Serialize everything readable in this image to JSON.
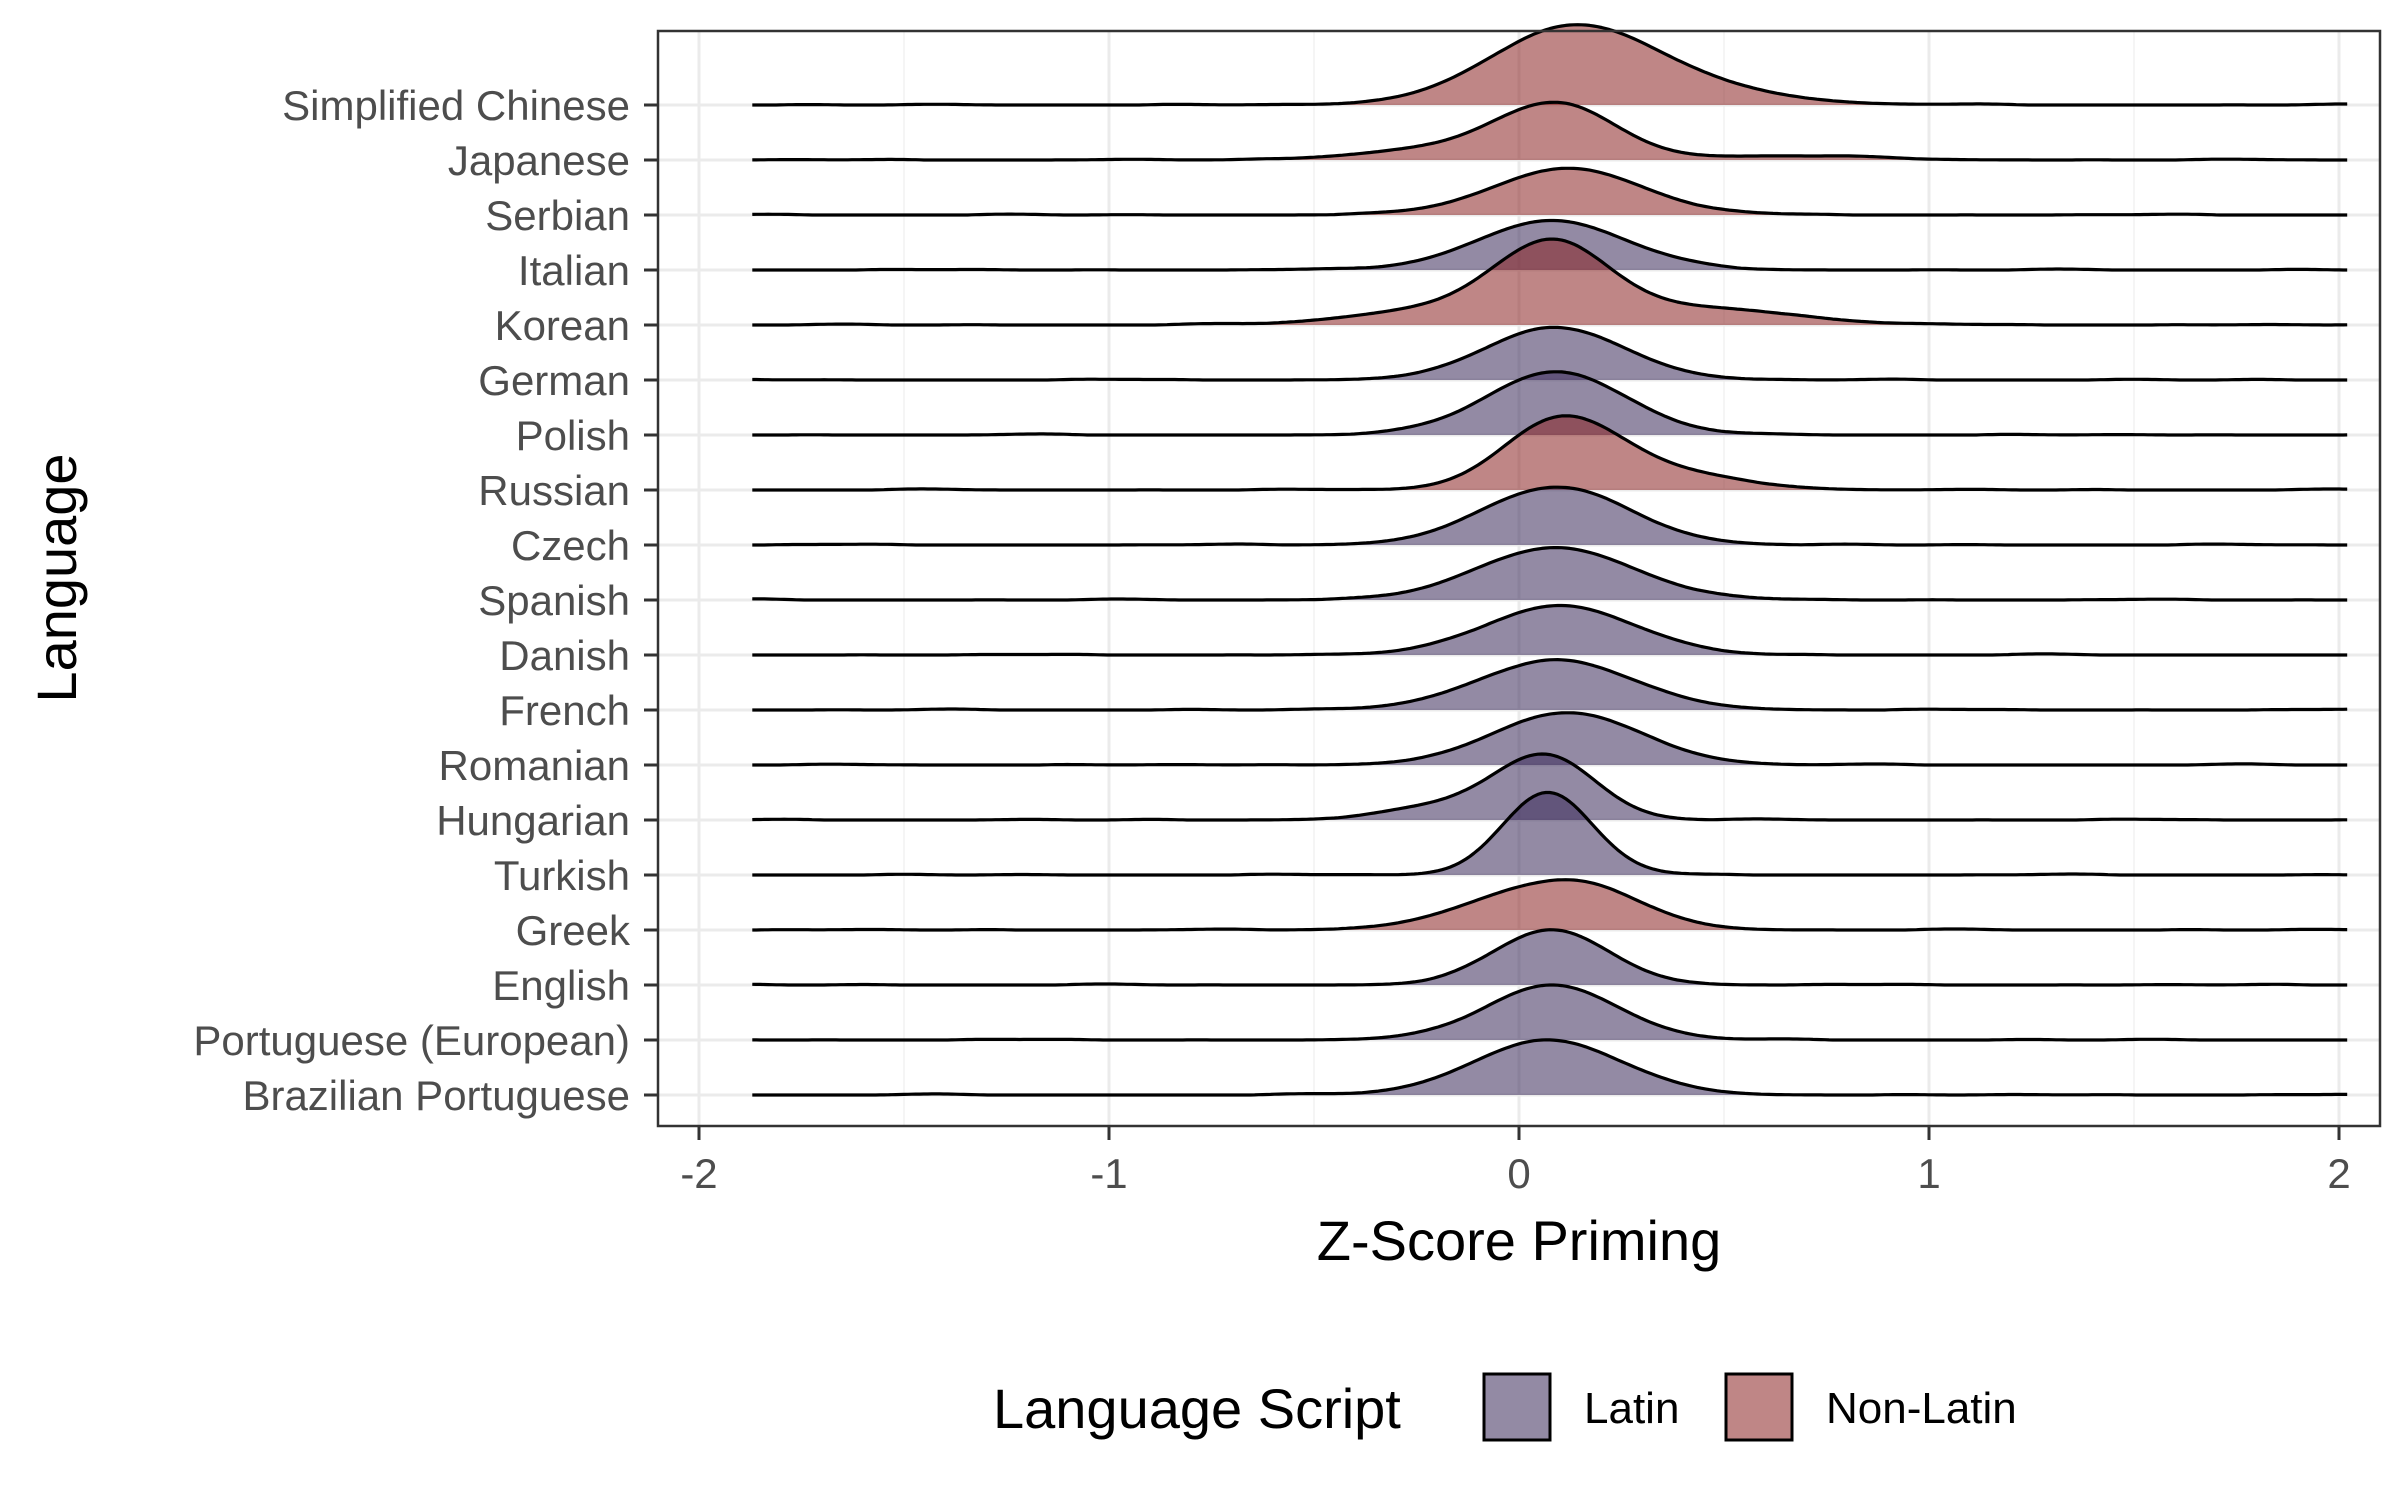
{
  "chart_data": {
    "type": "ridgeline",
    "xlabel": "Z-Score Priming",
    "ylabel": "Language",
    "xlim": [
      -2.1,
      2.1
    ],
    "x_ticks": [
      "-2",
      "-1",
      "0",
      "1",
      "2"
    ],
    "x_tick_values": [
      -2,
      -1,
      0,
      1,
      2
    ],
    "x_minor_values": [
      -1.5,
      -0.5,
      0.5,
      1.5
    ],
    "density_range": [
      -1.87,
      2.02
    ],
    "grid": true,
    "legend": {
      "title": "Language Script",
      "position": "bottom",
      "entries": [
        {
          "key": "Latin",
          "label": "Latin",
          "color": "#3b2a5a"
        },
        {
          "key": "Non-Latin",
          "label": "Non-Latin",
          "color": "#8b2323"
        }
      ]
    },
    "series": [
      {
        "name": "Simplified Chinese",
        "script": "Non-Latin",
        "peaks": [
          {
            "mu": 0.12,
            "sigma": 0.2,
            "a": 0.95
          },
          {
            "mu": 0.4,
            "sigma": 0.22,
            "a": 0.2
          }
        ],
        "peak_height": 1.45
      },
      {
        "name": "Japanese",
        "script": "Non-Latin",
        "peaks": [
          {
            "mu": 0.1,
            "sigma": 0.14,
            "a": 1.0
          },
          {
            "mu": -0.15,
            "sigma": 0.2,
            "a": 0.25
          },
          {
            "mu": 0.65,
            "sigma": 0.2,
            "a": 0.08
          }
        ],
        "peak_height": 1.05
      },
      {
        "name": "Serbian",
        "script": "Non-Latin",
        "peaks": [
          {
            "mu": 0.12,
            "sigma": 0.18,
            "a": 1.0
          }
        ],
        "peak_height": 0.85
      },
      {
        "name": "Italian",
        "script": "Latin",
        "peaks": [
          {
            "mu": 0.08,
            "sigma": 0.18,
            "a": 1.0
          }
        ],
        "peak_height": 0.9
      },
      {
        "name": "Korean",
        "script": "Non-Latin",
        "peaks": [
          {
            "mu": 0.08,
            "sigma": 0.14,
            "a": 1.0
          },
          {
            "mu": -0.2,
            "sigma": 0.2,
            "a": 0.2
          },
          {
            "mu": 0.45,
            "sigma": 0.22,
            "a": 0.22
          }
        ],
        "peak_height": 1.55
      },
      {
        "name": "German",
        "script": "Latin",
        "peaks": [
          {
            "mu": 0.09,
            "sigma": 0.17,
            "a": 1.0
          }
        ],
        "peak_height": 0.95
      },
      {
        "name": "Polish",
        "script": "Latin",
        "peaks": [
          {
            "mu": 0.09,
            "sigma": 0.17,
            "a": 1.0
          }
        ],
        "peak_height": 1.15
      },
      {
        "name": "Russian",
        "script": "Non-Latin",
        "peaks": [
          {
            "mu": 0.1,
            "sigma": 0.14,
            "a": 1.0
          },
          {
            "mu": 0.35,
            "sigma": 0.18,
            "a": 0.25
          }
        ],
        "peak_height": 1.35
      },
      {
        "name": "Czech",
        "script": "Latin",
        "peaks": [
          {
            "mu": 0.09,
            "sigma": 0.18,
            "a": 1.0
          }
        ],
        "peak_height": 1.05
      },
      {
        "name": "Spanish",
        "script": "Latin",
        "peaks": [
          {
            "mu": 0.09,
            "sigma": 0.19,
            "a": 1.0
          }
        ],
        "peak_height": 0.95
      },
      {
        "name": "Danish",
        "script": "Latin",
        "peaks": [
          {
            "mu": 0.1,
            "sigma": 0.18,
            "a": 1.0
          }
        ],
        "peak_height": 0.9
      },
      {
        "name": "French",
        "script": "Latin",
        "peaks": [
          {
            "mu": 0.09,
            "sigma": 0.19,
            "a": 1.0
          }
        ],
        "peak_height": 0.9
      },
      {
        "name": "Romanian",
        "script": "Latin",
        "peaks": [
          {
            "mu": 0.12,
            "sigma": 0.18,
            "a": 1.0
          }
        ],
        "peak_height": 0.95
      },
      {
        "name": "Hungarian",
        "script": "Latin",
        "peaks": [
          {
            "mu": 0.07,
            "sigma": 0.12,
            "a": 1.0
          },
          {
            "mu": -0.15,
            "sigma": 0.15,
            "a": 0.25
          }
        ],
        "peak_height": 1.2
      },
      {
        "name": "Turkish",
        "script": "Latin",
        "peaks": [
          {
            "mu": 0.07,
            "sigma": 0.11,
            "a": 1.0
          }
        ],
        "peak_height": 1.5
      },
      {
        "name": "Greek",
        "script": "Non-Latin",
        "peaks": [
          {
            "mu": 0.03,
            "sigma": 0.18,
            "a": 1.0
          },
          {
            "mu": 0.2,
            "sigma": 0.14,
            "a": 0.55
          }
        ],
        "peak_height": 0.9
      },
      {
        "name": "English",
        "script": "Latin",
        "peaks": [
          {
            "mu": 0.08,
            "sigma": 0.14,
            "a": 1.0
          }
        ],
        "peak_height": 1.0
      },
      {
        "name": "Portuguese (European)",
        "script": "Latin",
        "peaks": [
          {
            "mu": 0.08,
            "sigma": 0.16,
            "a": 1.0
          }
        ],
        "peak_height": 1.0
      },
      {
        "name": "Brazilian Portuguese",
        "script": "Latin",
        "peaks": [
          {
            "mu": 0.07,
            "sigma": 0.18,
            "a": 1.0
          }
        ],
        "peak_height": 1.0
      }
    ]
  }
}
